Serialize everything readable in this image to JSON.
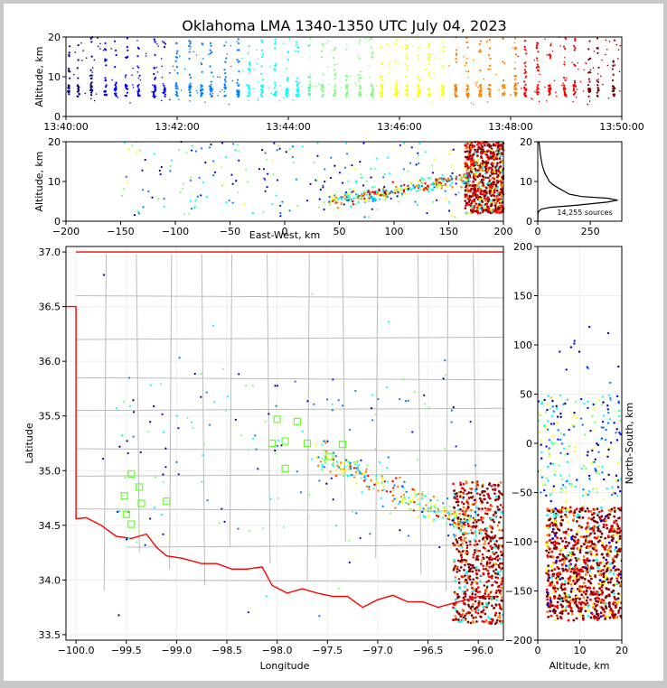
{
  "title": "Oklahoma LMA 1340-1350 UTC July 04, 2023",
  "colors": {
    "border_red": "#ff0000",
    "county_gray": "#bbbbbb",
    "station_green": "#66ff33",
    "cmap": [
      "#00007f",
      "#0000ff",
      "#007fff",
      "#00ffff",
      "#7fff7f",
      "#ffff00",
      "#ff7f00",
      "#ff0000",
      "#7f0000"
    ]
  },
  "chart_data": [
    {
      "name": "time-height",
      "type": "scatter",
      "ylabel": "Altitude, km",
      "xlabel": "",
      "ylim": [
        0,
        20
      ],
      "yticks": [
        "0",
        "10",
        "20"
      ],
      "xticks": [
        "13:40:00",
        "13:42:00",
        "13:44:00",
        "13:46:00",
        "13:48:00",
        "13:50:00"
      ],
      "xlim_minutes": [
        0,
        10
      ]
    },
    {
      "name": "east-west-altitude",
      "type": "scatter",
      "xlabel": "East-West, km",
      "ylabel": "Altitude, km",
      "xlim": [
        -200,
        200
      ],
      "ylim": [
        0,
        20
      ],
      "xticks": [
        "−200",
        "−150",
        "−100",
        "−50",
        "0",
        "50",
        "100",
        "150",
        "200"
      ],
      "yticks": [
        "0",
        "10",
        "20"
      ]
    },
    {
      "name": "altitude-histogram",
      "type": "line",
      "xlim": [
        0,
        400
      ],
      "ylim": [
        0,
        20
      ],
      "xticks": [
        "0",
        "250"
      ],
      "yticks": [
        "0",
        "10",
        "20"
      ],
      "annotation": "14,255 sources",
      "profile": [
        [
          0.2,
          0
        ],
        [
          1,
          2
        ],
        [
          5,
          2.5
        ],
        [
          15,
          3
        ],
        [
          60,
          3.5
        ],
        [
          180,
          4
        ],
        [
          330,
          4.8
        ],
        [
          380,
          5.3
        ],
        [
          330,
          5.8
        ],
        [
          210,
          6.2
        ],
        [
          150,
          6.8
        ],
        [
          130,
          7.4
        ],
        [
          110,
          8
        ],
        [
          90,
          8.6
        ],
        [
          70,
          9.3
        ],
        [
          55,
          10
        ],
        [
          45,
          11
        ],
        [
          35,
          12
        ],
        [
          28,
          13
        ],
        [
          22,
          14
        ],
        [
          18,
          15
        ],
        [
          15,
          16
        ],
        [
          12,
          17
        ],
        [
          10,
          18
        ],
        [
          8,
          19
        ],
        [
          5,
          20
        ]
      ]
    },
    {
      "name": "plan-view",
      "type": "scatter",
      "xlabel": "Longitude",
      "ylabel": "Latitude",
      "xlim": [
        -100.1,
        -95.75
      ],
      "ylim": [
        33.45,
        37.05
      ],
      "xticks": [
        "−100.0",
        "−99.5",
        "−99.0",
        "−98.5",
        "−98.0",
        "−97.5",
        "−97.0",
        "−96.5",
        "−96.0"
      ],
      "yticks": [
        "33.5",
        "34.0",
        "34.5",
        "35.0",
        "35.5",
        "36.0",
        "36.5",
        "37.0"
      ],
      "stations": [
        [
          -99.45,
          34.97
        ],
        [
          -99.37,
          34.85
        ],
        [
          -99.52,
          34.77
        ],
        [
          -99.35,
          34.7
        ],
        [
          -99.1,
          34.72
        ],
        [
          -99.5,
          34.6
        ],
        [
          -99.45,
          34.51
        ],
        [
          -98.0,
          35.47
        ],
        [
          -97.8,
          35.45
        ],
        [
          -98.05,
          35.25
        ],
        [
          -97.92,
          35.27
        ],
        [
          -97.7,
          35.25
        ],
        [
          -97.92,
          35.02
        ],
        [
          -97.48,
          35.13
        ],
        [
          -97.35,
          35.24
        ]
      ]
    },
    {
      "name": "altitude-north-south",
      "type": "scatter",
      "xlabel": "Altitude, km",
      "ylabel": "North-South, km",
      "xlim": [
        0,
        20
      ],
      "ylim": [
        -200,
        200
      ],
      "xticks": [
        "0",
        "10",
        "20"
      ],
      "yticks": [
        "−200",
        "−150",
        "−100",
        "−50",
        "0",
        "50",
        "100",
        "150",
        "200"
      ]
    }
  ]
}
